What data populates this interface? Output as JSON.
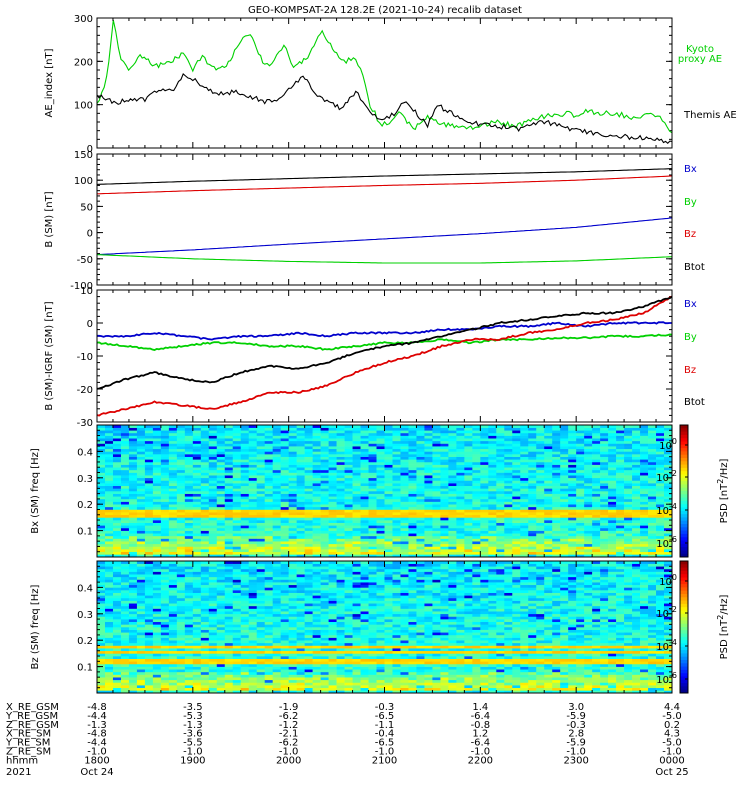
{
  "title": "GEO-KOMPSAT-2A 128.2E (2021-10-24) recalib dataset",
  "time_ticks": [
    "1800",
    "1900",
    "2000",
    "2100",
    "2200",
    "2300",
    "0000"
  ],
  "date_labels": {
    "year": "2021",
    "start": "Oct 24",
    "end": "Oct 25"
  },
  "chart_data": [
    {
      "type": "line",
      "name": "ae-panel",
      "ylabel": "AE_index [nT]",
      "ylim": [
        0,
        300
      ],
      "yticks": [
        0,
        100,
        200,
        300
      ],
      "colors": {
        "Kyoto proxy AE": "#00d000",
        "Themis AE": "#000000"
      },
      "legend": [
        "Kyoto proxy AE",
        "Themis AE"
      ],
      "series": [
        {
          "name": "Kyoto proxy AE",
          "x": [
            18.0,
            18.1,
            18.17,
            18.25,
            18.33,
            18.45,
            18.6,
            18.75,
            18.9,
            19.0,
            19.1,
            19.2,
            19.35,
            19.5,
            19.6,
            19.75,
            19.85,
            19.95,
            20.05,
            20.2,
            20.35,
            20.5,
            20.6,
            20.7,
            20.8,
            20.85,
            20.9,
            20.95,
            21.05,
            21.15,
            21.3,
            21.45,
            21.6,
            21.75,
            21.9,
            22.05,
            22.2,
            22.35,
            22.5,
            22.6,
            22.75,
            22.9,
            23.0,
            23.1,
            23.25,
            23.4,
            23.5,
            23.55,
            23.65,
            23.8,
            23.9,
            24.0
          ],
          "values": [
            100,
            160,
            290,
            210,
            180,
            215,
            190,
            195,
            220,
            180,
            215,
            185,
            185,
            250,
            265,
            190,
            200,
            240,
            185,
            210,
            270,
            215,
            200,
            210,
            150,
            100,
            80,
            55,
            60,
            80,
            45,
            70,
            55,
            50,
            45,
            55,
            60,
            50,
            60,
            70,
            75,
            80,
            75,
            85,
            80,
            80,
            75,
            70,
            72,
            80,
            65,
            35
          ]
        },
        {
          "name": "Themis AE",
          "x": [
            18.0,
            18.2,
            18.35,
            18.5,
            18.6,
            18.8,
            18.9,
            19.0,
            19.1,
            19.25,
            19.45,
            19.6,
            19.75,
            19.85,
            19.95,
            20.05,
            20.15,
            20.3,
            20.4,
            20.55,
            20.7,
            20.8,
            20.9,
            21.0,
            21.1,
            21.2,
            21.3,
            21.45,
            21.55,
            21.7,
            21.85,
            22.0,
            22.2,
            22.4,
            22.6,
            22.8,
            23.0,
            23.2,
            23.4,
            23.6,
            23.8,
            24.0
          ],
          "values": [
            120,
            105,
            115,
            110,
            130,
            135,
            170,
            160,
            140,
            125,
            130,
            120,
            105,
            110,
            120,
            150,
            165,
            120,
            110,
            90,
            130,
            100,
            75,
            65,
            80,
            110,
            90,
            50,
            100,
            80,
            60,
            55,
            50,
            45,
            60,
            55,
            40,
            35,
            28,
            25,
            20,
            15
          ]
        }
      ]
    },
    {
      "type": "line",
      "name": "b-panel",
      "ylabel": "B (SM) [nT]",
      "ylim": [
        -100,
        150
      ],
      "yticks": [
        -100,
        -50,
        0,
        50,
        100,
        150
      ],
      "legend": [
        "Bx",
        "By",
        "Bz",
        "Btot"
      ],
      "colors": {
        "Bx": "#0000cc",
        "By": "#00d000",
        "Bz": "#dd0000",
        "Btot": "#000000"
      },
      "series": [
        {
          "name": "Bx",
          "x": [
            18.0,
            19.0,
            20.0,
            21.0,
            22.0,
            23.0,
            24.0
          ],
          "values": [
            -42,
            -33,
            -22,
            -12,
            -2,
            10,
            28
          ]
        },
        {
          "name": "By",
          "x": [
            18.0,
            19.0,
            20.0,
            21.0,
            22.0,
            23.0,
            24.0
          ],
          "values": [
            -42,
            -50,
            -55,
            -58,
            -58,
            -54,
            -46
          ]
        },
        {
          "name": "Bz",
          "x": [
            18.0,
            19.0,
            20.0,
            21.0,
            22.0,
            23.0,
            24.0
          ],
          "values": [
            74,
            80,
            85,
            90,
            94,
            100,
            108
          ]
        },
        {
          "name": "Btot",
          "x": [
            18.0,
            19.0,
            20.0,
            21.0,
            22.0,
            23.0,
            24.0
          ],
          "values": [
            92,
            98,
            103,
            108,
            112,
            116,
            122
          ]
        }
      ]
    },
    {
      "type": "line",
      "name": "db-panel",
      "ylabel": "B (SM)-IGRF (SM) [nT]",
      "ylim": [
        -30,
        10
      ],
      "yticks": [
        -30,
        -20,
        -10,
        0,
        10
      ],
      "legend": [
        "Bx",
        "By",
        "Bz",
        "Btot"
      ],
      "colors": {
        "Bx": "#0000cc",
        "By": "#00d000",
        "Bz": "#dd0000",
        "Btot": "#000000"
      },
      "series": [
        {
          "name": "Bx",
          "x": [
            18.0,
            18.3,
            18.6,
            18.9,
            19.2,
            19.5,
            19.8,
            20.1,
            20.4,
            20.7,
            21.0,
            21.3,
            21.6,
            21.9,
            22.2,
            22.5,
            22.8,
            23.1,
            23.4,
            23.7,
            24.0
          ],
          "values": [
            -4,
            -4,
            -3,
            -4,
            -5,
            -4,
            -4,
            -3,
            -4,
            -3,
            -3,
            -3,
            -2,
            -2,
            -1,
            -1,
            0,
            -1,
            0,
            0,
            0
          ]
        },
        {
          "name": "By",
          "x": [
            18.0,
            18.3,
            18.6,
            18.9,
            19.2,
            19.5,
            19.8,
            20.1,
            20.4,
            20.7,
            21.0,
            21.3,
            21.6,
            21.9,
            22.2,
            22.5,
            22.8,
            23.1,
            23.4,
            23.7,
            24.0
          ],
          "values": [
            -6,
            -7,
            -8,
            -7,
            -6,
            -6,
            -7,
            -7,
            -8,
            -7,
            -6,
            -6,
            -5,
            -6,
            -5,
            -5,
            -4.5,
            -4.5,
            -4,
            -4,
            -3.5
          ]
        },
        {
          "name": "Bz",
          "x": [
            18.0,
            18.3,
            18.6,
            18.9,
            19.2,
            19.5,
            19.8,
            20.1,
            20.4,
            20.7,
            21.0,
            21.3,
            21.6,
            21.9,
            22.2,
            22.5,
            22.8,
            23.1,
            23.4,
            23.7,
            24.0
          ],
          "values": [
            -28,
            -26,
            -24,
            -25,
            -26,
            -24,
            -21,
            -21,
            -19,
            -15,
            -12,
            -10,
            -7,
            -5,
            -5,
            -3,
            -2,
            0,
            1,
            3,
            8
          ]
        },
        {
          "name": "Btot",
          "x": [
            18.0,
            18.3,
            18.6,
            18.9,
            19.2,
            19.5,
            19.8,
            20.1,
            20.4,
            20.7,
            21.0,
            21.3,
            21.6,
            21.9,
            22.2,
            22.5,
            22.8,
            23.1,
            23.4,
            23.7,
            24.0
          ],
          "values": [
            -20,
            -17,
            -15,
            -17,
            -18,
            -15,
            -13,
            -14,
            -12,
            -9,
            -7,
            -6,
            -4,
            -2,
            0,
            1,
            2,
            3,
            3,
            5,
            8
          ]
        }
      ]
    },
    {
      "type": "heatmap",
      "name": "bx-spectrogram",
      "ylabel": "Bx (SM) freq [Hz]",
      "ylim": [
        0,
        0.5
      ],
      "yticks": [
        0.1,
        0.2,
        0.3,
        0.4
      ],
      "colorbar": {
        "label": "PSD [nT^2/Hz]",
        "ticks": [
          "10^0",
          "10^-2",
          "10^-4",
          "10^-6"
        ]
      },
      "bands_hz": [
        0.175,
        0.16
      ]
    },
    {
      "type": "heatmap",
      "name": "bz-spectrogram",
      "ylabel": "Bz (SM) freq [Hz]",
      "ylim": [
        0,
        0.5
      ],
      "yticks": [
        0.1,
        0.2,
        0.3,
        0.4
      ],
      "colorbar": {
        "label": "PSD [nT^2/Hz]",
        "ticks": [
          "10^0",
          "10^-2",
          "10^-4",
          "10^-6"
        ]
      },
      "bands_hz": [
        0.175,
        0.155,
        0.12
      ]
    }
  ],
  "orbit_table": {
    "rows": [
      {
        "label": "X_RE_GSM",
        "values": [
          "-4.8",
          "-3.5",
          "-1.9",
          "-0.3",
          "1.4",
          "3.0",
          "4.4"
        ]
      },
      {
        "label": "Y_RE_GSM",
        "values": [
          "-4.4",
          "-5.3",
          "-6.2",
          "-6.5",
          "-6.4",
          "-5.9",
          "-5.0"
        ]
      },
      {
        "label": "Z_RE_GSM",
        "values": [
          "-1.3",
          "-1.3",
          "-1.2",
          "-1.1",
          "-0.8",
          "-0.3",
          "0.2"
        ]
      },
      {
        "label": "X_RE_SM",
        "values": [
          "-4.8",
          "-3.6",
          "-2.1",
          "-0.4",
          "1.2",
          "2.8",
          "4.3"
        ]
      },
      {
        "label": "Y_RE_SM",
        "values": [
          "-4.4",
          "-5.5",
          "-6.2",
          "-6.5",
          "-6.4",
          "-5.9",
          "-5.0"
        ]
      },
      {
        "label": "Z_RE_SM",
        "values": [
          "-1.0",
          "-1.0",
          "-1.0",
          "-1.0",
          "-1.0",
          "-1.0",
          "-1.0"
        ]
      },
      {
        "label": "hhmm",
        "values": [
          "1800",
          "1900",
          "2000",
          "2100",
          "2200",
          "2300",
          "0000"
        ]
      }
    ]
  }
}
